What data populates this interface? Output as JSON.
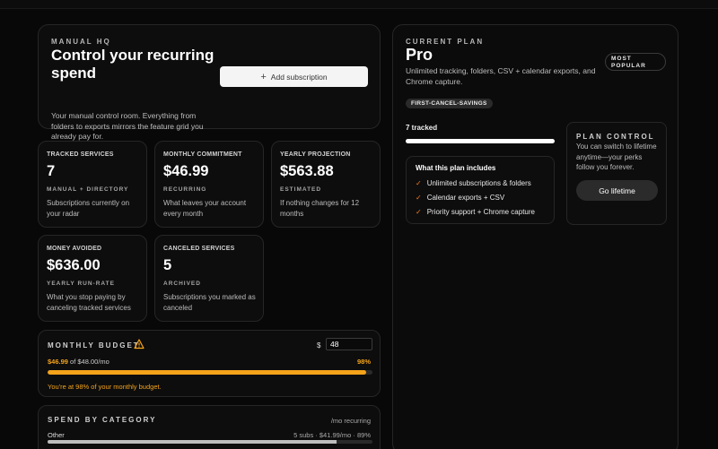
{
  "hero": {
    "eyebrow": "MANUAL HQ",
    "title": "Control your recurring spend",
    "description": "Your manual control room. Everything from folders to exports mirrors the feature grid you already pay for.",
    "add_button": "Add subscription"
  },
  "stats": [
    {
      "label": "TRACKED SERVICES",
      "value": "7",
      "sub": "MANUAL + DIRECTORY",
      "desc": "Subscriptions currently on your radar"
    },
    {
      "label": "MONTHLY COMMITMENT",
      "value": "$46.99",
      "sub": "RECURRING",
      "desc": "What leaves your account every month"
    },
    {
      "label": "YEARLY PROJECTION",
      "value": "$563.88",
      "sub": "ESTIMATED",
      "desc": "If nothing changes for 12 months"
    },
    {
      "label": "MONEY AVOIDED",
      "value": "$636.00",
      "sub": "YEARLY RUN-RATE",
      "desc": "What you stop paying by canceling tracked services"
    },
    {
      "label": "CANCELED SERVICES",
      "value": "5",
      "sub": "ARCHIVED",
      "desc": "Subscriptions you marked as canceled"
    }
  ],
  "budget": {
    "title": "MONTHLY BUDGET",
    "currency": "$",
    "input_value": "48",
    "spent": "$46.99",
    "of_text": "of $48.00/mo",
    "percent_label": "98%",
    "percent": 98,
    "note": "You're at 98% of your monthly budget.",
    "colors": {
      "accent": "#f5a31a"
    }
  },
  "category": {
    "title": "SPEND BY CATEGORY",
    "unit": "/mo recurring",
    "items": [
      {
        "name": "Other",
        "meta": "5 subs · $41.99/mo · 89%",
        "percent": 89
      }
    ]
  },
  "plan": {
    "eyebrow": "CURRENT PLAN",
    "name": "Pro",
    "description": "Unlimited tracking, folders, CSV + calendar exports, and Chrome capture.",
    "badge": "MOST POPULAR",
    "pill": "FIRST-CANCEL-SAVINGS",
    "tracked": "7 tracked",
    "tracked_percent": 100,
    "includes_title": "What this plan includes",
    "features": [
      "Unlimited subscriptions & folders",
      "Calendar exports + CSV",
      "Priority support + Chrome capture"
    ],
    "control": {
      "title": "PLAN CONTROL",
      "description": "You can switch to lifetime anytime—your perks follow you forever.",
      "button": "Go lifetime"
    }
  }
}
